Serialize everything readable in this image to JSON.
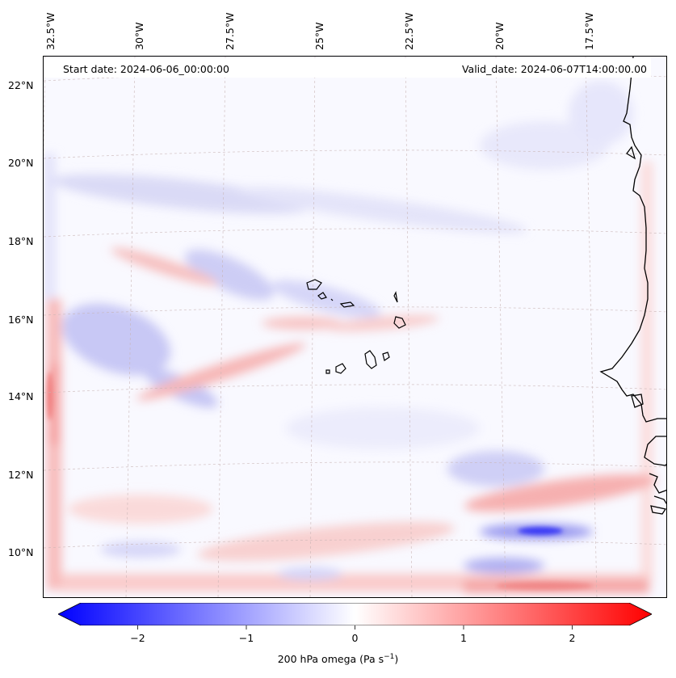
{
  "header": {
    "start_date": "Start date: 2024-06-06_00:00:00",
    "valid_date": "Valid_date: 2024-06-07T14:00:00.00"
  },
  "axes": {
    "longitude_labels": [
      "32.5°W",
      "30°W",
      "27.5°W",
      "25°W",
      "22.5°W",
      "20°W",
      "17.5°W"
    ],
    "latitude_labels": [
      "22°N",
      "20°N",
      "18°N",
      "16°N",
      "14°N",
      "12°N",
      "10°N"
    ]
  },
  "colorbar": {
    "ticks": [
      "−2",
      "−1",
      "0",
      "1",
      "2"
    ],
    "tick_values": [
      -2,
      -1,
      0,
      1,
      2
    ],
    "range": [
      -2.5,
      2.5
    ],
    "label_prefix": "200 hPa omega (Pa s",
    "label_exponent": "−1",
    "label_suffix": ")",
    "cmap": [
      "#0000ff",
      "#ffffff",
      "#ff0000"
    ]
  },
  "map": {
    "variable": "omega",
    "level": "200 hPa",
    "coastline_color": "#000000",
    "gridline_color": "#c8b4b4"
  }
}
